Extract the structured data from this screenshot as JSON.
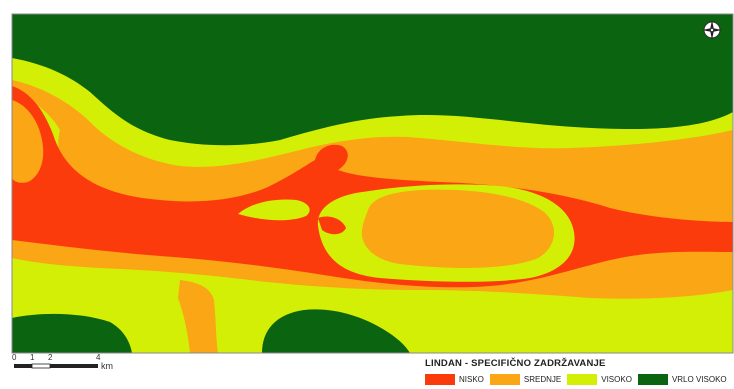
{
  "map": {
    "colors": {
      "nisko": "#fb3b0c",
      "srednje": "#faa615",
      "visoko": "#d3ef06",
      "vrlo_visoko": "#0a6410",
      "frame": "#8a8a8a"
    }
  },
  "scale_bar": {
    "ticks": [
      "0",
      "1",
      "2",
      "4"
    ],
    "unit": "km"
  },
  "legend": {
    "title": "LINDAN - SPECIFIČNO ZADRŽAVANJE",
    "items": [
      {
        "label": "NISKO",
        "color": "#fb3b0c"
      },
      {
        "label": "SREDNJE",
        "color": "#faa615"
      },
      {
        "label": "VISOKO",
        "color": "#d3ef06"
      },
      {
        "label": "VRLO VISOKO",
        "color": "#0a6410"
      }
    ]
  },
  "north_arrow": {
    "icon": "compass-rose-icon"
  }
}
